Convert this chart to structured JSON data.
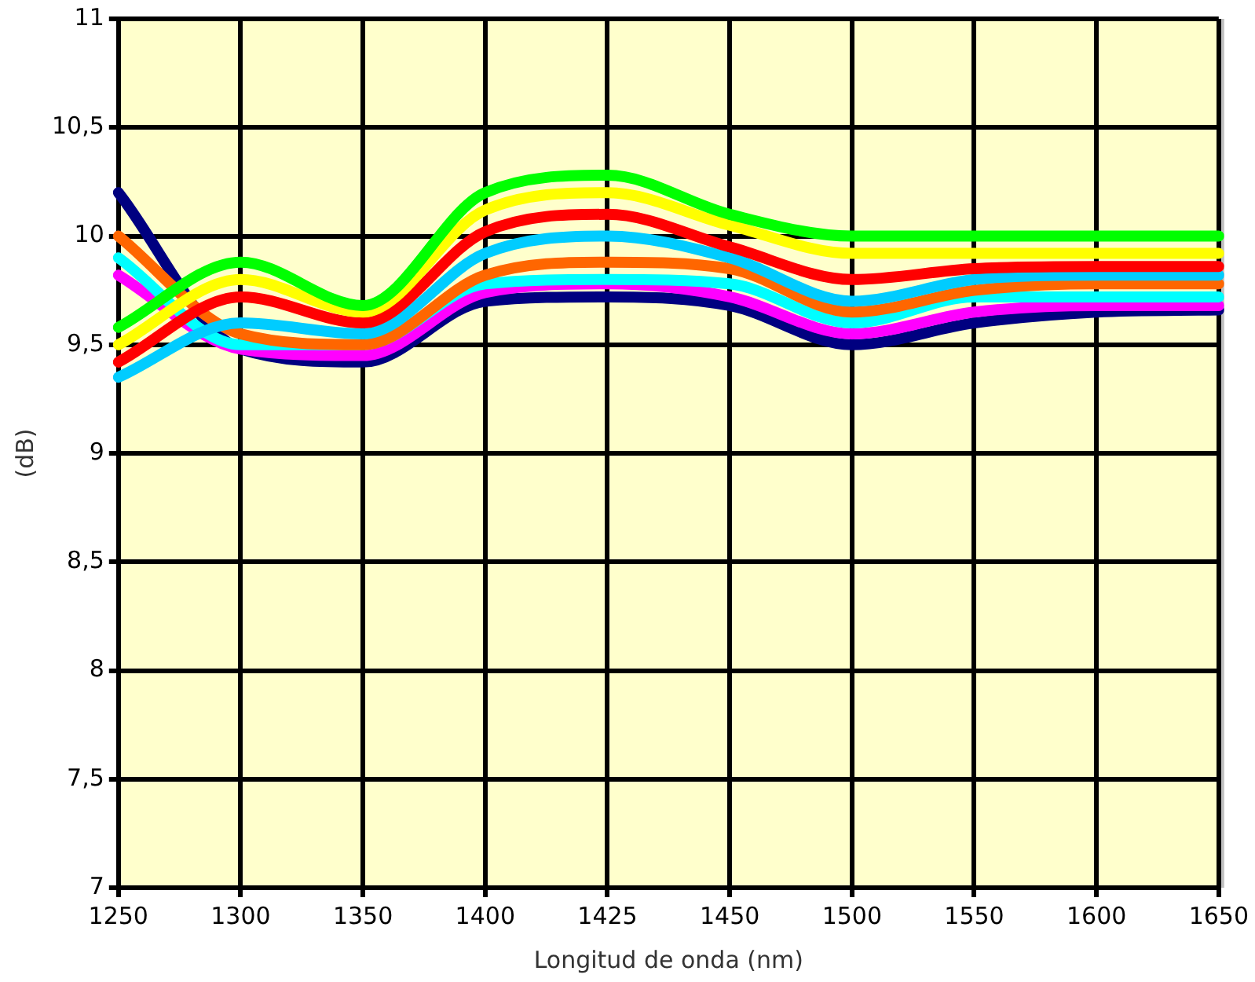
{
  "chart_data": {
    "type": "line",
    "xlabel": "Longitud de onda (nm)",
    "ylabel": "(dB)",
    "categories": [
      "1250",
      "1300",
      "1350",
      "1400",
      "1425",
      "1450",
      "1500",
      "1550",
      "1600",
      "1650"
    ],
    "ylim": [
      7,
      11
    ],
    "yticks": [
      7,
      {
        "value": 7.5,
        "label": "7,5"
      },
      8,
      {
        "value": 8.5,
        "label": "8,5"
      },
      9,
      {
        "value": 9.5,
        "label": "9,5"
      },
      10,
      {
        "value": 10.5,
        "label": "10,5"
      },
      11
    ],
    "grid": true,
    "legend": false,
    "marker": "none",
    "line_style": "solid",
    "series": [
      {
        "color": "#00ff00",
        "values": [
          9.58,
          9.88,
          9.68,
          10.2,
          10.28,
          10.1,
          10.0,
          10.0,
          10.0,
          10.0
        ]
      },
      {
        "color": "#ffff00",
        "values": [
          9.5,
          9.8,
          9.65,
          10.12,
          10.2,
          10.05,
          9.92,
          9.92,
          9.92,
          9.92
        ]
      },
      {
        "color": "#ff0000",
        "values": [
          9.42,
          9.72,
          9.6,
          10.02,
          10.1,
          9.95,
          9.8,
          9.85,
          9.86,
          9.86
        ]
      },
      {
        "color": "#00ccff",
        "values": [
          9.35,
          9.6,
          9.55,
          9.92,
          10.0,
          9.9,
          9.7,
          9.8,
          9.82,
          9.82
        ]
      },
      {
        "color": "#ff6600",
        "values": [
          10.0,
          9.55,
          9.5,
          9.82,
          9.88,
          9.85,
          9.65,
          9.75,
          9.78,
          9.78
        ]
      },
      {
        "color": "#00ffff",
        "values": [
          9.9,
          9.5,
          9.5,
          9.78,
          9.8,
          9.78,
          9.6,
          9.72,
          9.72,
          9.72
        ]
      },
      {
        "color": "#ff00ff",
        "values": [
          9.82,
          9.48,
          9.45,
          9.74,
          9.78,
          9.72,
          9.55,
          9.65,
          9.68,
          9.68
        ]
      },
      {
        "color": "#000080",
        "values": [
          10.2,
          9.48,
          9.42,
          9.7,
          9.72,
          9.68,
          9.5,
          9.6,
          9.65,
          9.66
        ]
      }
    ]
  }
}
